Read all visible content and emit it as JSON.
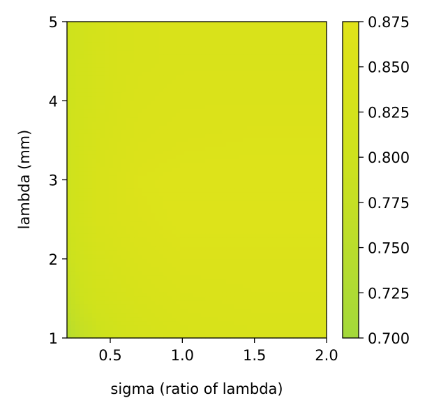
{
  "chart_data": {
    "type": "heatmap",
    "subtype": "filled-contour",
    "title": "",
    "xlabel": "sigma (ratio of lambda)",
    "ylabel": "lambda (mm)",
    "xlim": [
      0.2,
      2.0
    ],
    "ylim": [
      1,
      5
    ],
    "xticks": [
      0.5,
      1.0,
      1.5,
      2.0
    ],
    "xtick_labels": [
      "0.5",
      "1.0",
      "1.5",
      "2.0"
    ],
    "yticks": [
      1,
      2,
      3,
      4,
      5
    ],
    "ytick_labels": [
      "1",
      "2",
      "3",
      "4",
      "5"
    ],
    "grid": false,
    "x": [
      0.2,
      0.3,
      0.45,
      0.7,
      1.0,
      1.5,
      2.0
    ],
    "y": [
      1.0,
      1.5,
      2.0,
      2.5,
      3.0,
      3.5,
      4.0,
      4.5,
      5.0
    ],
    "z": [
      [
        0.74,
        0.77,
        0.8,
        0.825,
        0.835,
        0.84,
        0.84
      ],
      [
        0.77,
        0.8,
        0.82,
        0.835,
        0.845,
        0.85,
        0.85
      ],
      [
        0.79,
        0.81,
        0.83,
        0.845,
        0.855,
        0.855,
        0.855
      ],
      [
        0.8,
        0.82,
        0.84,
        0.855,
        0.862,
        0.862,
        0.862
      ],
      [
        0.8,
        0.82,
        0.84,
        0.858,
        0.863,
        0.863,
        0.862
      ],
      [
        0.8,
        0.82,
        0.835,
        0.85,
        0.855,
        0.858,
        0.858
      ],
      [
        0.8,
        0.815,
        0.83,
        0.845,
        0.85,
        0.85,
        0.85
      ],
      [
        0.8,
        0.815,
        0.83,
        0.84,
        0.845,
        0.845,
        0.845
      ],
      [
        0.8,
        0.81,
        0.83,
        0.84,
        0.845,
        0.845,
        0.845
      ]
    ],
    "colorbar": {
      "min": 0.7,
      "max": 0.875,
      "ticks": [
        0.7,
        0.725,
        0.75,
        0.775,
        0.8,
        0.825,
        0.85,
        0.875
      ],
      "tick_labels": [
        "0.700",
        "0.725",
        "0.750",
        "0.775",
        "0.800",
        "0.825",
        "0.850",
        "0.875"
      ],
      "colors": [
        "#a3d93a",
        "#b3dc31",
        "#c3df25",
        "#cfe21c",
        "#d8e21a",
        "#e0e31a"
      ]
    }
  }
}
